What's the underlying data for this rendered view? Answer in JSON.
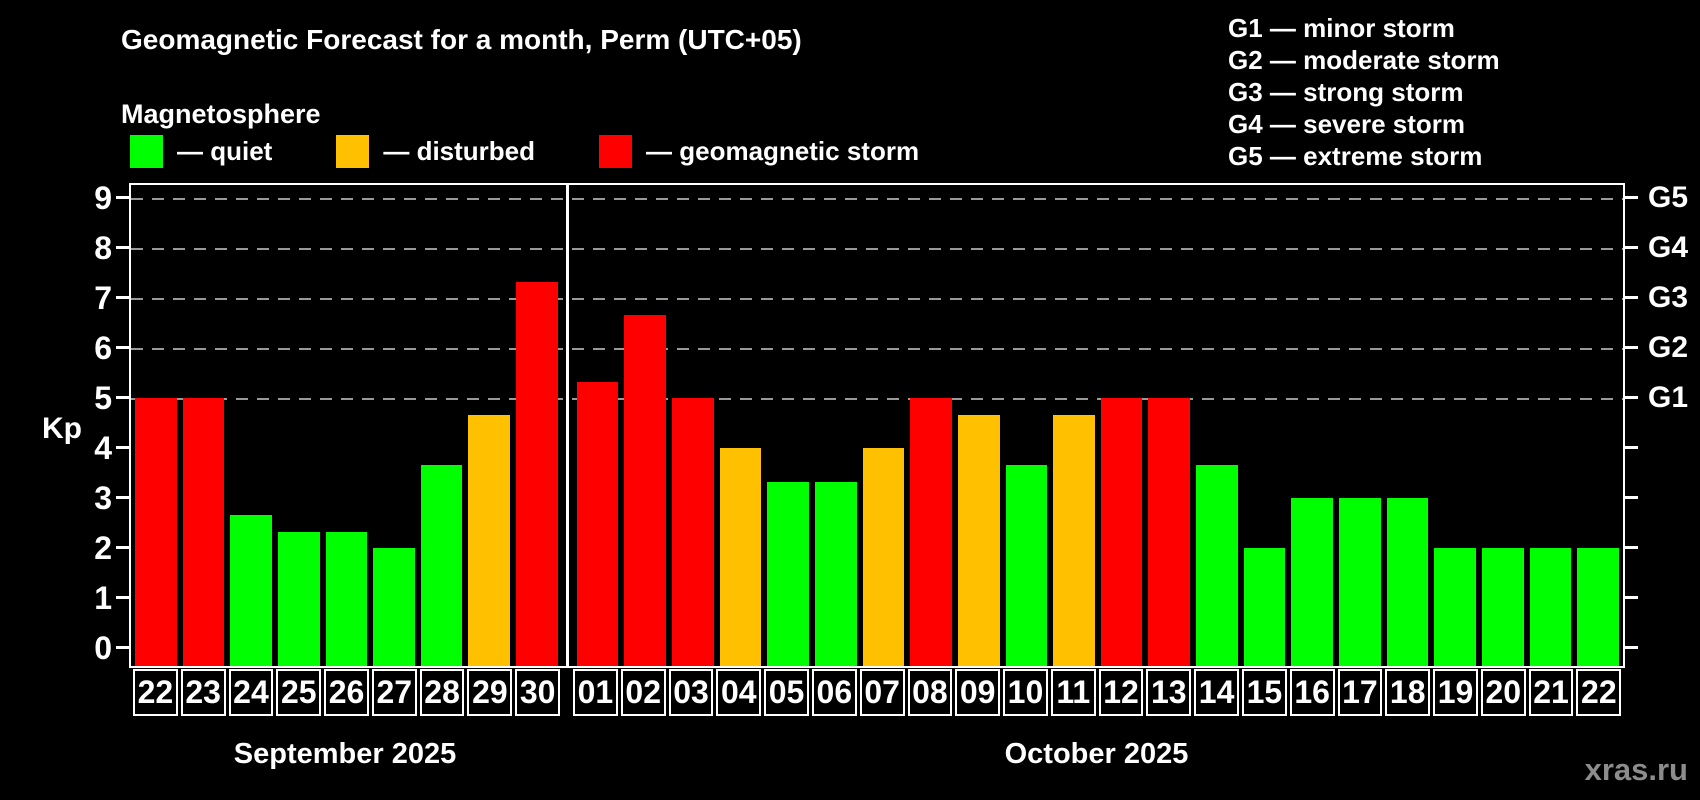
{
  "header": {
    "title": "Geomagnetic Forecast for a month, Perm (UTC+05)",
    "subtitle": "Magnetosphere"
  },
  "legend": {
    "items": [
      {
        "key": "quiet",
        "label": "— quiet"
      },
      {
        "key": "disturbed",
        "label": "— disturbed"
      },
      {
        "key": "storm",
        "label": "— geomagnetic storm"
      }
    ]
  },
  "storm_scale_legend": {
    "items": [
      {
        "code": "G1",
        "label": "G1 — minor storm"
      },
      {
        "code": "G2",
        "label": "G2 — moderate storm"
      },
      {
        "code": "G3",
        "label": "G3 — strong storm"
      },
      {
        "code": "G4",
        "label": "G4 — severe storm"
      },
      {
        "code": "G5",
        "label": "G5 — extreme storm"
      }
    ]
  },
  "axes": {
    "y_label": "Kp",
    "y_ticks": [
      0,
      1,
      2,
      3,
      4,
      5,
      6,
      7,
      8,
      9
    ],
    "right_labels": [
      {
        "value": 5,
        "label": "G1"
      },
      {
        "value": 6,
        "label": "G2"
      },
      {
        "value": 7,
        "label": "G3"
      },
      {
        "value": 8,
        "label": "G4"
      },
      {
        "value": 9,
        "label": "G5"
      }
    ]
  },
  "colors": {
    "quiet": "#00ff00",
    "disturbed": "#ffc000",
    "storm": "#ff0000",
    "grid": "#999999",
    "axis": "#ffffff",
    "watermark": "#8c8c8c"
  },
  "chart_data": {
    "type": "bar",
    "title": "Geomagnetic Forecast for a month, Perm (UTC+05)",
    "xlabel": "",
    "ylabel": "Kp",
    "ylim": [
      0,
      9
    ],
    "grid": "horizontal dashed",
    "gridlines_at": [
      5,
      6,
      7,
      8,
      9
    ],
    "legend_position": "top",
    "level_rule": "kp >= 5 storm (red), 4 <= kp < 5 disturbed (orange), kp < 4 quiet (green)",
    "series": [
      {
        "name": "September 2025",
        "points": [
          {
            "day": "22",
            "kp": 5,
            "level": "storm"
          },
          {
            "day": "23",
            "kp": 5,
            "level": "storm"
          },
          {
            "day": "24",
            "kp": 2.67,
            "level": "quiet"
          },
          {
            "day": "25",
            "kp": 2.33,
            "level": "quiet"
          },
          {
            "day": "26",
            "kp": 2.33,
            "level": "quiet"
          },
          {
            "day": "27",
            "kp": 2,
            "level": "quiet"
          },
          {
            "day": "28",
            "kp": 3.67,
            "level": "quiet"
          },
          {
            "day": "29",
            "kp": 4.67,
            "level": "disturbed"
          },
          {
            "day": "30",
            "kp": 7.33,
            "level": "storm"
          }
        ]
      },
      {
        "name": "October 2025",
        "points": [
          {
            "day": "01",
            "kp": 5.33,
            "level": "storm"
          },
          {
            "day": "02",
            "kp": 6.67,
            "level": "storm"
          },
          {
            "day": "03",
            "kp": 5,
            "level": "storm"
          },
          {
            "day": "04",
            "kp": 4,
            "level": "disturbed"
          },
          {
            "day": "05",
            "kp": 3.33,
            "level": "quiet"
          },
          {
            "day": "06",
            "kp": 3.33,
            "level": "quiet"
          },
          {
            "day": "07",
            "kp": 4,
            "level": "disturbed"
          },
          {
            "day": "08",
            "kp": 5,
            "level": "storm"
          },
          {
            "day": "09",
            "kp": 4.67,
            "level": "disturbed"
          },
          {
            "day": "10",
            "kp": 3.67,
            "level": "quiet"
          },
          {
            "day": "11",
            "kp": 4.67,
            "level": "disturbed"
          },
          {
            "day": "12",
            "kp": 5,
            "level": "storm"
          },
          {
            "day": "13",
            "kp": 5,
            "level": "storm"
          },
          {
            "day": "14",
            "kp": 3.67,
            "level": "quiet"
          },
          {
            "day": "15",
            "kp": 2,
            "level": "quiet"
          },
          {
            "day": "16",
            "kp": 3,
            "level": "quiet"
          },
          {
            "day": "17",
            "kp": 3,
            "level": "quiet"
          },
          {
            "day": "18",
            "kp": 3,
            "level": "quiet"
          },
          {
            "day": "19",
            "kp": 2,
            "level": "quiet"
          },
          {
            "day": "20",
            "kp": 2,
            "level": "quiet"
          },
          {
            "day": "21",
            "kp": 2,
            "level": "quiet"
          },
          {
            "day": "22",
            "kp": 2,
            "level": "quiet"
          }
        ]
      }
    ]
  },
  "watermark": "xras.ru"
}
